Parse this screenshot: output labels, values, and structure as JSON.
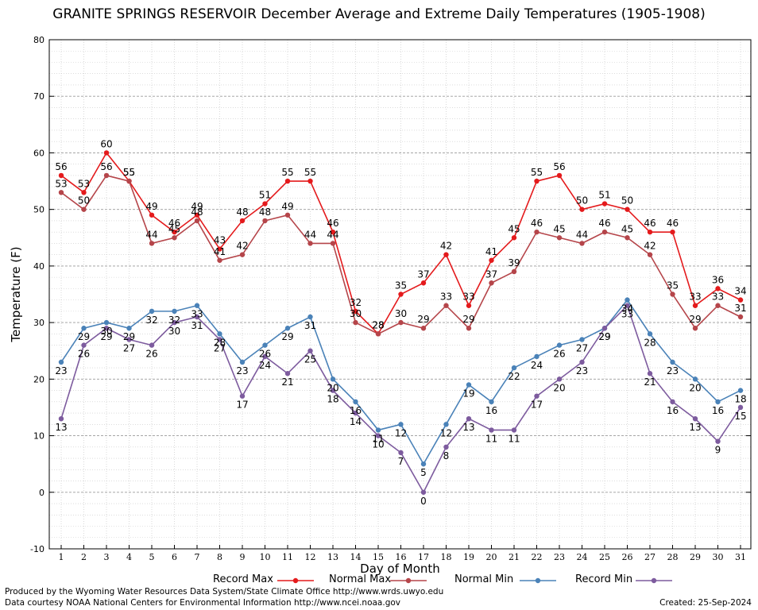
{
  "chart_data": {
    "type": "line",
    "title": "GRANITE SPRINGS RESERVOIR December Average and Extreme Daily Temperatures (1905-1908)",
    "xlabel": "Day of Month",
    "ylabel": "Temperature (F)",
    "ylim": [
      -10,
      80
    ],
    "yticks": [
      -10,
      0,
      10,
      20,
      30,
      40,
      50,
      60,
      70,
      80
    ],
    "grid": true,
    "legend_position": "bottom",
    "x": [
      1,
      2,
      3,
      4,
      5,
      6,
      7,
      8,
      9,
      10,
      11,
      12,
      13,
      14,
      15,
      16,
      17,
      18,
      19,
      20,
      21,
      22,
      23,
      24,
      25,
      26,
      27,
      28,
      29,
      30,
      31
    ],
    "series": [
      {
        "name": "Record Max",
        "color": "#e41a1c",
        "values": [
          56,
          53,
          60,
          55,
          49,
          46,
          49,
          43,
          48,
          51,
          55,
          55,
          46,
          32,
          28,
          35,
          37,
          42,
          33,
          41,
          45,
          55,
          56,
          50,
          51,
          50,
          46,
          46,
          33,
          36,
          34
        ]
      },
      {
        "name": "Normal Max",
        "color": "#b5454a",
        "values": [
          53,
          50,
          56,
          55,
          44,
          45,
          48,
          41,
          42,
          48,
          49,
          44,
          44,
          30,
          28,
          30,
          29,
          33,
          29,
          37,
          39,
          46,
          45,
          44,
          46,
          45,
          42,
          35,
          29,
          33,
          31
        ]
      },
      {
        "name": "Normal Min",
        "color": "#4a82b8",
        "values": [
          23,
          29,
          30,
          29,
          32,
          32,
          33,
          28,
          23,
          26,
          29,
          31,
          20,
          16,
          11,
          12,
          5,
          12,
          19,
          16,
          22,
          24,
          26,
          27,
          29,
          34,
          28,
          23,
          20,
          16,
          18
        ]
      },
      {
        "name": "Record Min",
        "color": "#7d5b9e",
        "values": [
          13,
          26,
          29,
          27,
          26,
          30,
          31,
          27,
          17,
          24,
          21,
          25,
          18,
          14,
          10,
          7,
          0,
          8,
          13,
          11,
          11,
          17,
          20,
          23,
          29,
          33,
          21,
          16,
          13,
          9,
          15
        ]
      }
    ]
  },
  "footer": {
    "credit1": "Produced by the Wyoming Water Resources Data System/State Climate Office http://www.wrds.uwyo.edu",
    "credit2": "Data courtesy NOAA National Centers for Environmental Information http://www.ncei.noaa.gov",
    "created": "Created:  25-Sep-2024"
  }
}
